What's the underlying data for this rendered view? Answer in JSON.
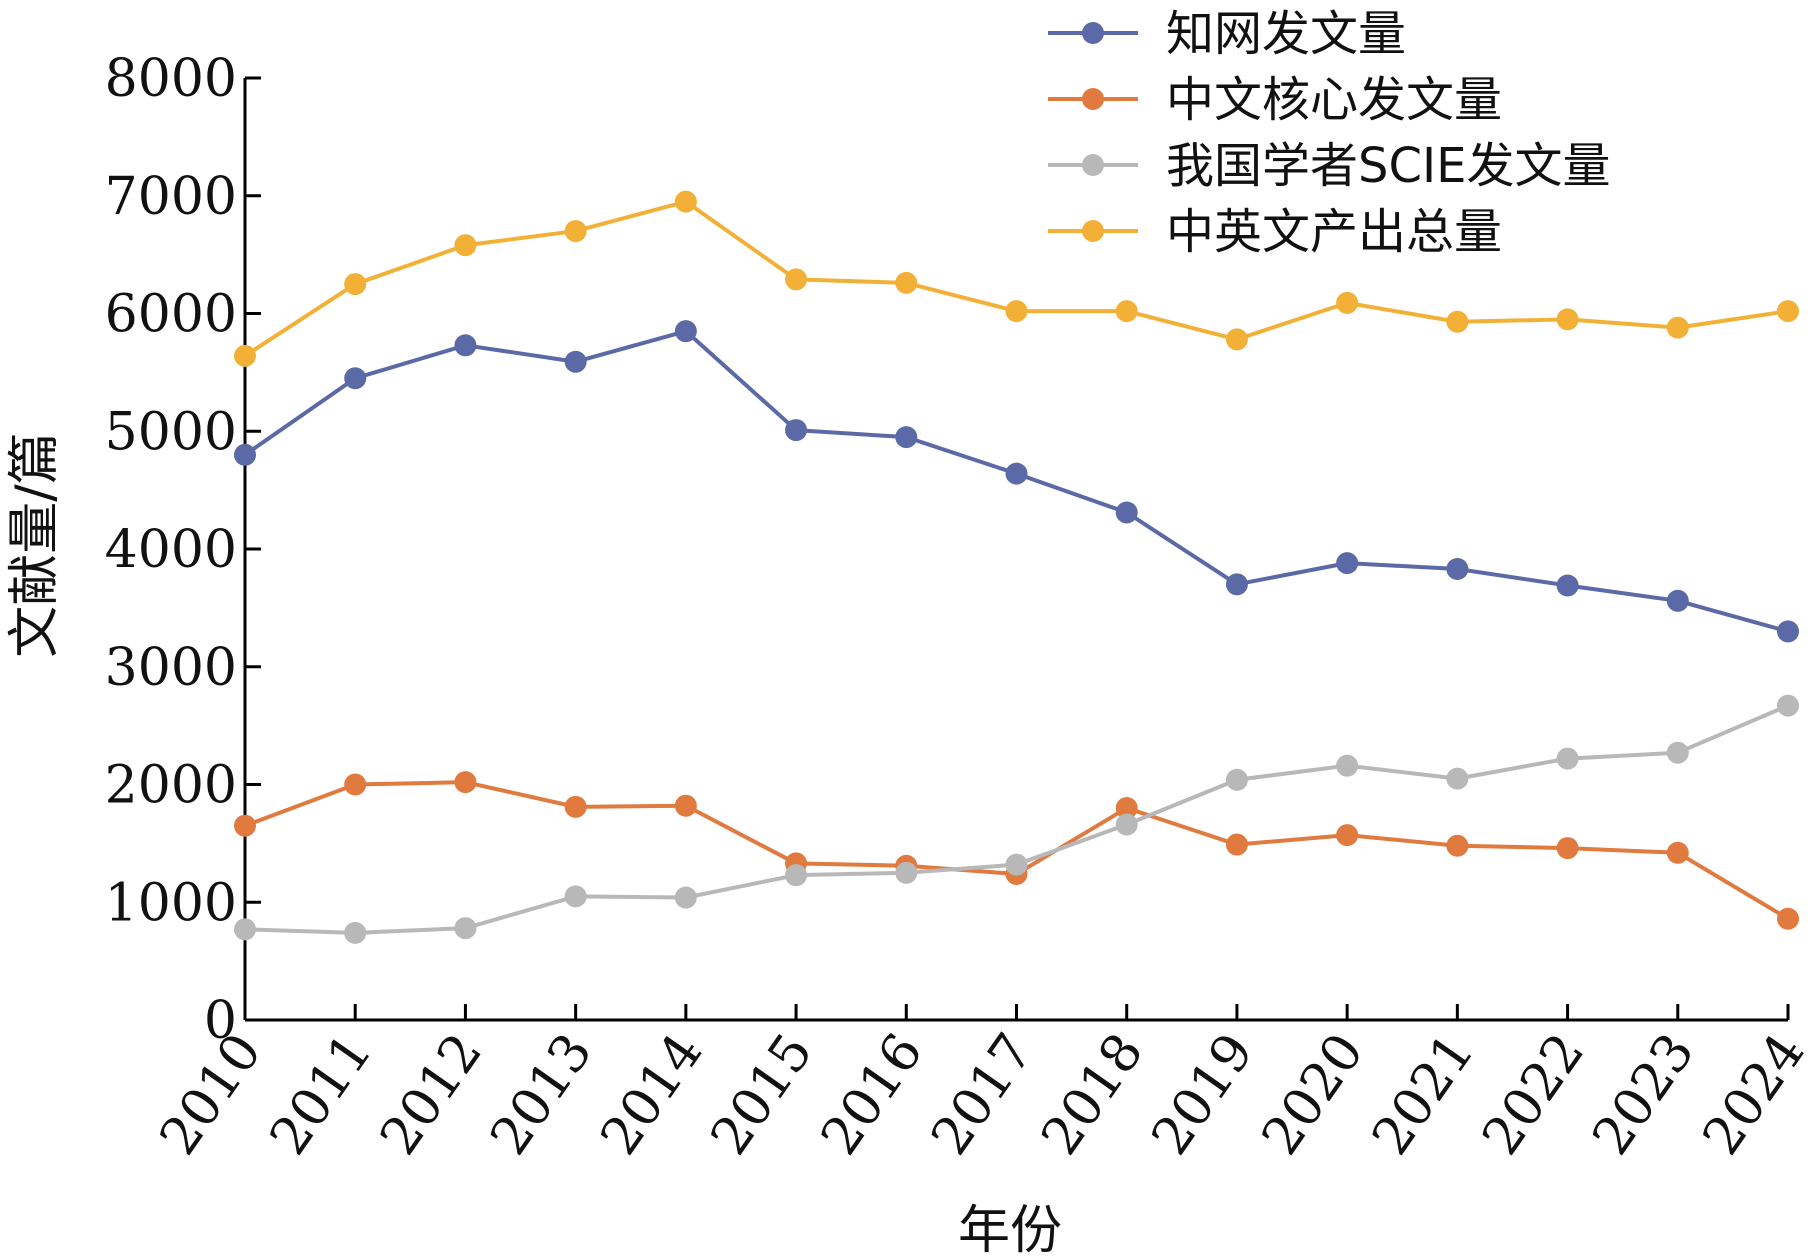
{
  "chart_data": {
    "type": "line",
    "title": "",
    "xlabel": "年份",
    "ylabel": "文献量/篇",
    "ylim": [
      0,
      8000
    ],
    "yticks": [
      0,
      1000,
      2000,
      3000,
      4000,
      5000,
      6000,
      7000,
      8000
    ],
    "categories": [
      "2010",
      "2011",
      "2012",
      "2013",
      "2014",
      "2015",
      "2016",
      "2017",
      "2018",
      "2019",
      "2020",
      "2021",
      "2022",
      "2023",
      "2024"
    ],
    "grid": false,
    "legend_position": "top-right",
    "series": [
      {
        "name": "知网发文量",
        "color": "#5b6aa6",
        "values": [
          4800,
          5450,
          5730,
          5590,
          5850,
          5010,
          4950,
          4640,
          4310,
          3700,
          3880,
          3830,
          3690,
          3560,
          3300
        ]
      },
      {
        "name": "中文核心发文量",
        "color": "#e07a3f",
        "values": [
          1650,
          2000,
          2020,
          1810,
          1820,
          1330,
          1310,
          1240,
          1800,
          1490,
          1570,
          1480,
          1460,
          1420,
          860
        ]
      },
      {
        "name": "我国学者SCIE发文量",
        "color": "#b8b8b8",
        "values": [
          770,
          740,
          780,
          1050,
          1040,
          1230,
          1250,
          1320,
          1660,
          2040,
          2160,
          2050,
          2220,
          2270,
          2670
        ]
      },
      {
        "name": "中英文产出总量",
        "color": "#f2b036",
        "values": [
          5640,
          6250,
          6580,
          6700,
          6950,
          6290,
          6260,
          6020,
          6020,
          5780,
          6090,
          5930,
          5950,
          5880,
          6020
        ]
      }
    ]
  }
}
